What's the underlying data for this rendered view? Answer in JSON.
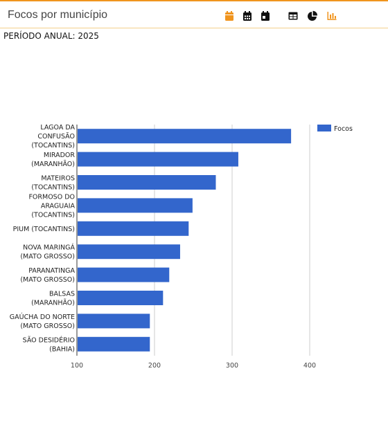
{
  "header": {
    "title": "Focos por município",
    "period": "PERÍODO ANUAL: 2025"
  },
  "toolbar": {
    "icons": [
      "calendar-orange-icon",
      "calendar-grid-icon",
      "calendar-day-icon",
      "table-icon",
      "pie-chart-icon",
      "bar-chart-icon"
    ],
    "accent": "#f0941e"
  },
  "chart_data": {
    "type": "bar",
    "orientation": "horizontal",
    "categories": [
      [
        "LAGOA DA",
        "CONFUSÃO",
        "(TOCANTINS)"
      ],
      [
        "MIRADOR",
        "(MARANHÃO)"
      ],
      [
        "MATEIROS",
        "(TOCANTINS)"
      ],
      [
        "FORMOSO DO",
        "ARAGUAIA",
        "(TOCANTINS)"
      ],
      [
        "PIUM (TOCANTINS)"
      ],
      [
        "NOVA MARINGÁ",
        "(MATO GROSSO)"
      ],
      [
        "PARANATINGA",
        "(MATO GROSSO)"
      ],
      [
        "BALSAS",
        "(MARANHÃO)"
      ],
      [
        "GAÚCHA DO NORTE",
        "(MATO GROSSO)"
      ],
      [
        "SÃO DESIDÉRIO",
        "(BAHIA)"
      ]
    ],
    "series": [
      {
        "name": "Focos",
        "color": "#3366cc",
        "values": [
          376,
          308,
          279,
          249,
          244,
          233,
          219,
          211,
          194,
          194
        ]
      }
    ],
    "xlim": [
      100,
      400
    ],
    "xticks": [
      100,
      200,
      300,
      400
    ],
    "grid": true,
    "legend": "right"
  }
}
